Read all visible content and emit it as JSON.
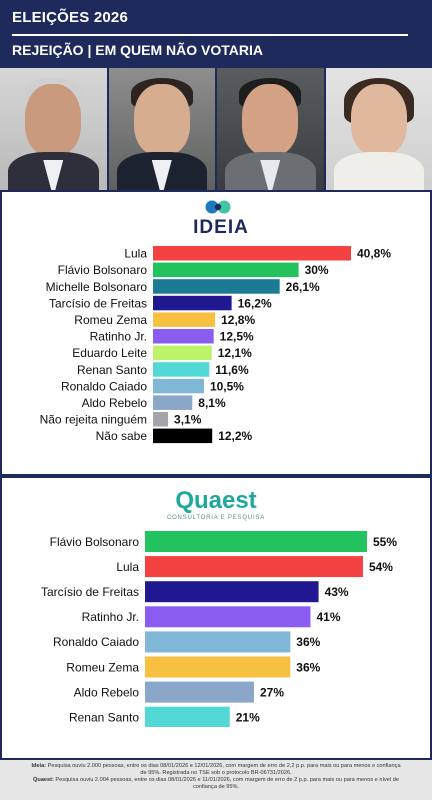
{
  "header": {
    "title": "ELEIÇÕES 2026",
    "subtitle": "REJEIÇÃO | EM QUEM NÃO VOTARIA"
  },
  "photos": [
    {
      "name": "lula-photo"
    },
    {
      "name": "flavio-photo"
    },
    {
      "name": "tarcisio-photo"
    },
    {
      "name": "michelle-photo"
    }
  ],
  "logos": {
    "ideia": "IDEIA",
    "quaest": "Quaest",
    "quaest_tagline": "CONSULTORIA E PESQUISA"
  },
  "chart_data": [
    {
      "type": "bar",
      "orientation": "horizontal",
      "source": "IDEIA",
      "categories": [
        "Lula",
        "Flávio Bolsonaro",
        "Michelle Bolsonaro",
        "Tarcísio de Freitas",
        "Romeu Zema",
        "Ratinho Jr.",
        "Eduardo Leite",
        "Renan Santo",
        "Ronaldo Caiado",
        "Aldo Rebelo",
        "Não rejeita ninguém",
        "Não sabe"
      ],
      "values": [
        40.8,
        30,
        26.1,
        16.2,
        12.8,
        12.5,
        12.1,
        11.6,
        10.5,
        8.1,
        3.1,
        12.2
      ],
      "labels": [
        "40,8%",
        "30%",
        "26,1%",
        "16,2%",
        "12,8%",
        "12,5%",
        "12,1%",
        "11,6%",
        "10,5%",
        "8,1%",
        "3,1%",
        "12,2%"
      ],
      "colors": [
        "#f44141",
        "#22c25f",
        "#1d7a95",
        "#1f1890",
        "#f8c040",
        "#8b5cf0",
        "#bcf36b",
        "#52d8d5",
        "#80b6d6",
        "#8aa6c8",
        "#a4a4ac",
        "#000000"
      ],
      "xlim": [
        0,
        45
      ],
      "grid": false
    },
    {
      "type": "bar",
      "orientation": "horizontal",
      "source": "Quaest",
      "categories": [
        "Flávio Bolsonaro",
        "Lula",
        "Tarcísio de Freitas",
        "Ratinho Jr.",
        "Ronaldo Caiado",
        "Romeu Zema",
        "Aldo Rebelo",
        "Renan Santo"
      ],
      "values": [
        55,
        54,
        43,
        41,
        36,
        36,
        27,
        21
      ],
      "labels": [
        "55%",
        "54%",
        "43%",
        "41%",
        "36%",
        "36%",
        "27%",
        "21%"
      ],
      "colors": [
        "#22c25f",
        "#f44141",
        "#1f1890",
        "#8b5cf0",
        "#80b6d6",
        "#f8c040",
        "#8aa6c8",
        "#52d8d5"
      ],
      "xlim": [
        0,
        60
      ],
      "grid": true
    }
  ],
  "footer": {
    "ideia_label": "Ideia:",
    "ideia_text": " Pesquisa ouviu 2.000 pessoas, entre os dias 08/01/2026 e 12/01/2026, com margem de erro de 2,2 p.p. para mais ou para menos e confiança de 95%. Registrada no TSE sob o protocolo BR-06731/2026.",
    "quaest_label": "Quaest:",
    "quaest_text": " Pesquisa ouviu 2.004 pessoas, entre os dias 08/01/2026 e 11/01/2026, com margem de erro de 2 p.p. para mais ou para menos e nível de confiança de 95%."
  }
}
